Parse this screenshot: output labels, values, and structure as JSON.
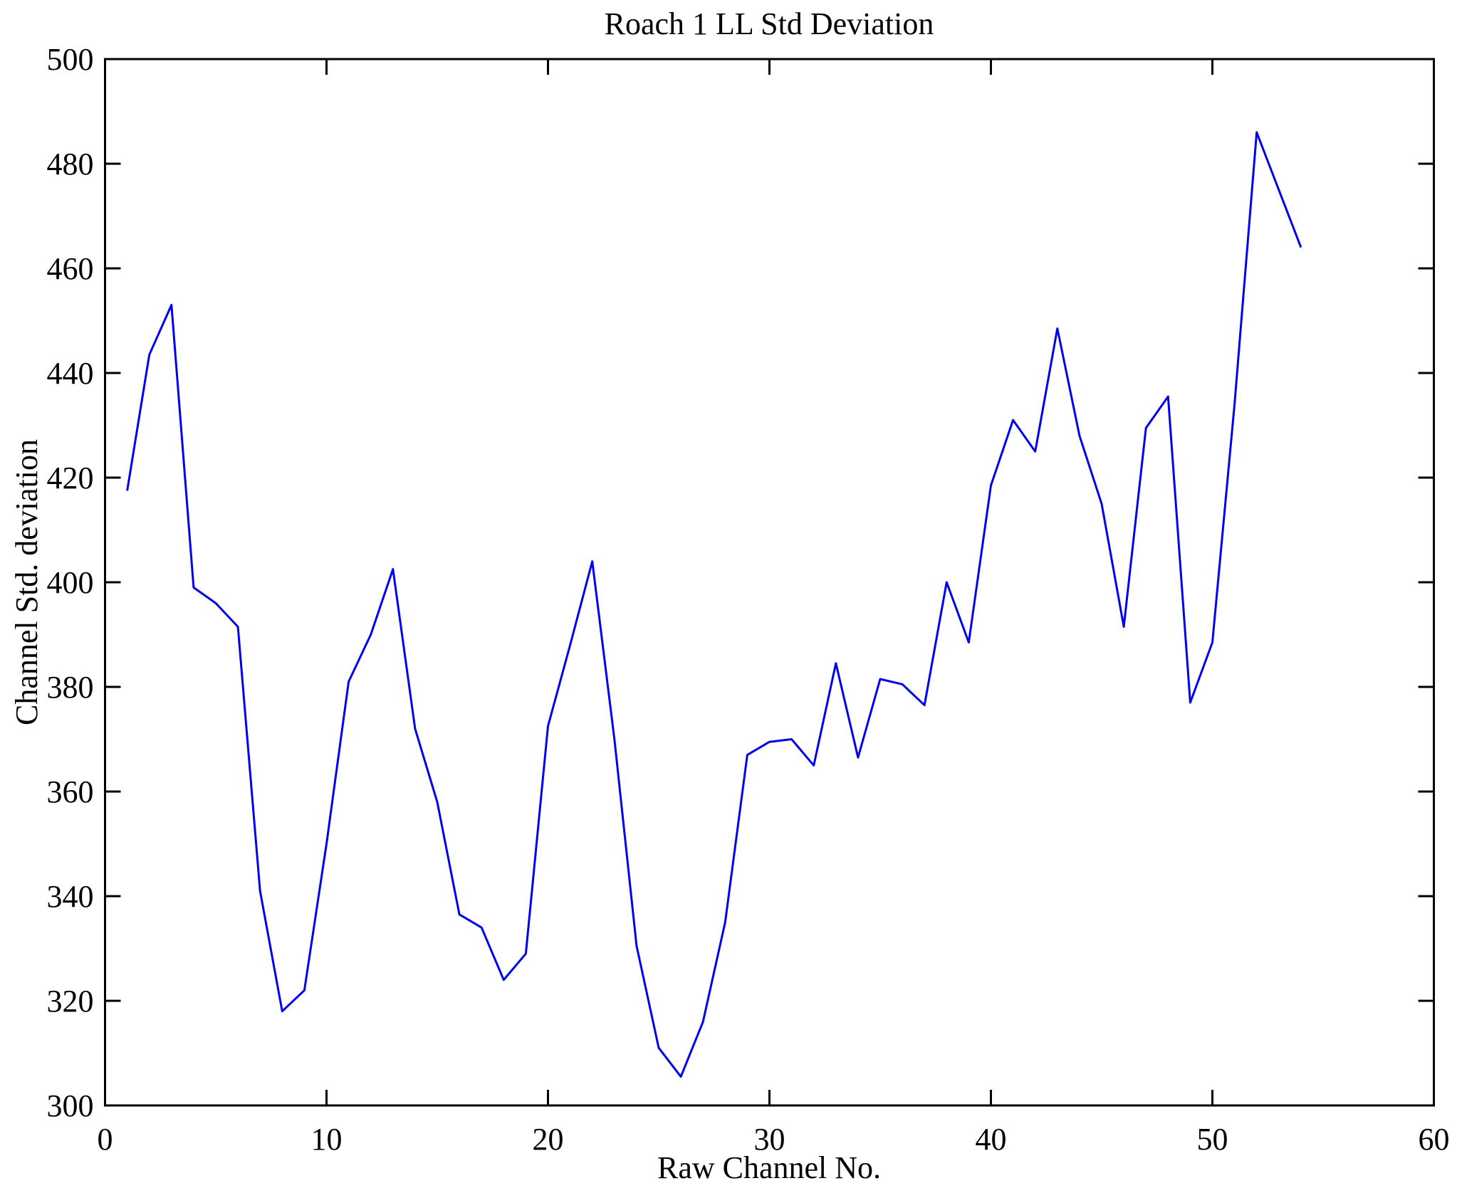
{
  "figure": {
    "background_color": "#ffffff",
    "axis_color": "#000000"
  },
  "chart_data": {
    "type": "line",
    "title": "Roach 1 LL Std Deviation",
    "xlabel": "Raw Channel No.",
    "ylabel": "Channel Std. deviation",
    "xlim": [
      0,
      60
    ],
    "ylim": [
      300,
      500
    ],
    "x_ticks": [
      0,
      10,
      20,
      30,
      40,
      50,
      60
    ],
    "y_ticks": [
      300,
      320,
      340,
      360,
      380,
      400,
      420,
      440,
      460,
      480,
      500
    ],
    "grid": false,
    "legend_position": "none",
    "line_color": "#0000f0",
    "series": [
      {
        "name": "channel-std-deviation",
        "x": [
          1,
          2,
          3,
          4,
          5,
          6,
          7,
          8,
          9,
          10,
          11,
          12,
          13,
          14,
          15,
          16,
          17,
          18,
          19,
          20,
          21,
          22,
          23,
          24,
          25,
          26,
          27,
          28,
          29,
          30,
          31,
          32,
          33,
          34,
          35,
          36,
          37,
          38,
          39,
          40,
          41,
          42,
          43,
          44,
          45,
          46,
          47,
          48,
          49,
          50,
          51,
          52,
          53,
          54
        ],
        "y": [
          417.5,
          443.5,
          453,
          399,
          396,
          391.5,
          341,
          318,
          322,
          350,
          381,
          390,
          402.5,
          372,
          358,
          336.5,
          334,
          324,
          329,
          372.5,
          388,
          404,
          370,
          330.5,
          311,
          305.5,
          316,
          335,
          367,
          369.5,
          370,
          365,
          384.5,
          366.5,
          381.5,
          380.5,
          376.5,
          400,
          388.5,
          418.5,
          431,
          425,
          448.5,
          428,
          415,
          391.5,
          429.5,
          435.5,
          377,
          388.5,
          434,
          486,
          475,
          464
        ]
      }
    ]
  }
}
